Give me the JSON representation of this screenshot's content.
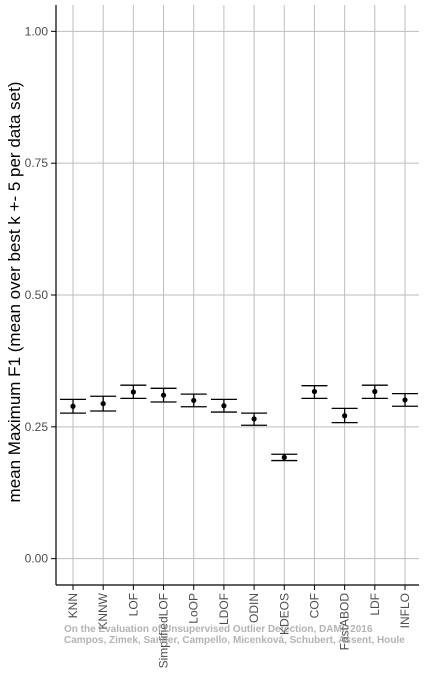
{
  "chart_data": {
    "type": "errorbar",
    "ylabel": "mean Maximum F1 (mean over best k +- 5 per data set)",
    "xlabel": "",
    "ylim": [
      -0.05,
      1.05
    ],
    "yticks": [
      0.0,
      0.25,
      0.5,
      0.75,
      1.0
    ],
    "ytick_labels": [
      "0.00",
      "0.25",
      "0.50",
      "0.75",
      "1.00"
    ],
    "grid": true,
    "categories": [
      "KNN",
      "KNNW",
      "LOF",
      "SimplifiedLOF",
      "LoOP",
      "LDOF",
      "ODIN",
      "KDEOS",
      "COF",
      "FastABOD",
      "LDF",
      "INFLO"
    ],
    "series": [
      {
        "mean": [
          0.289,
          0.294,
          0.316,
          0.31,
          0.3,
          0.29,
          0.265,
          0.192,
          0.317,
          0.271,
          0.317,
          0.301
        ],
        "lower": [
          0.276,
          0.28,
          0.304,
          0.297,
          0.288,
          0.278,
          0.253,
          0.186,
          0.304,
          0.258,
          0.304,
          0.289
        ],
        "upper": [
          0.302,
          0.308,
          0.329,
          0.323,
          0.312,
          0.302,
          0.276,
          0.198,
          0.328,
          0.285,
          0.329,
          0.313
        ]
      }
    ],
    "colors": {
      "grid": "#bebebe",
      "mark": "#000000",
      "axis": "#000000"
    },
    "watermark": [
      "On the Evaluation of Unsupervised Outlier Detection, DAMI, 2016",
      "Campos, Zimek, Sander, Campello, Micenková, Schubert, Assent, Houle"
    ]
  }
}
